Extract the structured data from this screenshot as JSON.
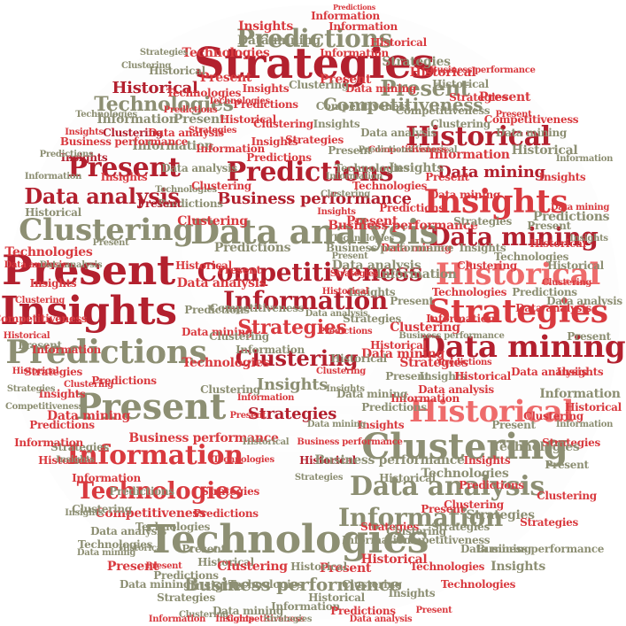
{
  "palette": {
    "dark_red": "#b3202e",
    "red": "#d93a3f",
    "salmon": "#ee6b6b",
    "olive": "#8d8f73",
    "background": "#ffffff"
  },
  "words": [
    {
      "t": "Strategies",
      "c": "dark_red"
    },
    {
      "t": "Predictions",
      "c": "olive"
    },
    {
      "t": "Technologies",
      "c": "olive"
    },
    {
      "t": "Present",
      "c": "dark_red"
    },
    {
      "t": "Data analysis",
      "c": "dark_red"
    },
    {
      "t": "Clustering",
      "c": "olive"
    },
    {
      "t": "Present",
      "c": "dark_red"
    },
    {
      "t": "Insights",
      "c": "dark_red"
    },
    {
      "t": "Predictions",
      "c": "olive"
    },
    {
      "t": "Present",
      "c": "olive"
    },
    {
      "t": "Information",
      "c": "red"
    },
    {
      "t": "Technologies",
      "c": "red"
    },
    {
      "t": "Technologies",
      "c": "olive"
    },
    {
      "t": "Business performance",
      "c": "olive"
    },
    {
      "t": "Historical",
      "c": "dark_red"
    },
    {
      "t": "Present",
      "c": "olive"
    },
    {
      "t": "Competitiveness",
      "c": "olive"
    },
    {
      "t": "Data mining",
      "c": "dark_red"
    },
    {
      "t": "Insights",
      "c": "red"
    },
    {
      "t": "Data mining",
      "c": "dark_red"
    },
    {
      "t": "Historical",
      "c": "salmon"
    },
    {
      "t": "Strategies",
      "c": "red"
    },
    {
      "t": "Data mining",
      "c": "dark_red"
    },
    {
      "t": "Historical",
      "c": "salmon"
    },
    {
      "t": "Clustering",
      "c": "olive"
    },
    {
      "t": "Data analysis",
      "c": "olive"
    },
    {
      "t": "Information",
      "c": "olive"
    },
    {
      "t": "Predictions",
      "c": "dark_red"
    },
    {
      "t": "Business performance",
      "c": "dark_red"
    },
    {
      "t": "Data analysis",
      "c": "olive"
    },
    {
      "t": "Competitiveness",
      "c": "dark_red"
    },
    {
      "t": "Information",
      "c": "dark_red"
    },
    {
      "t": "Strategies",
      "c": "red"
    },
    {
      "t": "Clustering",
      "c": "dark_red"
    },
    {
      "t": "Insights",
      "c": "olive"
    },
    {
      "t": "Strategies",
      "c": "dark_red"
    },
    {
      "t": "Competitiveness",
      "c": "olive"
    },
    {
      "t": "Historical",
      "c": "dark_red"
    },
    {
      "t": "Information",
      "c": "red"
    },
    {
      "t": "Information",
      "c": "red"
    },
    {
      "t": "Predictions",
      "c": "red"
    },
    {
      "t": "Insights",
      "c": "red"
    },
    {
      "t": "Data mining",
      "c": "olive"
    },
    {
      "t": "Historical",
      "c": "red"
    },
    {
      "t": "Technologies",
      "c": "red"
    },
    {
      "t": "Present",
      "c": "red"
    },
    {
      "t": "Historical",
      "c": "dark_red"
    },
    {
      "t": "Clustering",
      "c": "dark_red"
    },
    {
      "t": "Insights",
      "c": "dark_red"
    },
    {
      "t": "Information",
      "c": "olive"
    },
    {
      "t": "Predictions",
      "c": "olive"
    },
    {
      "t": "Data analysis",
      "c": "olive"
    },
    {
      "t": "Clustering",
      "c": "red"
    },
    {
      "t": "Present",
      "c": "dark_red"
    },
    {
      "t": "Technologies",
      "c": "olive"
    },
    {
      "t": "Data mining",
      "c": "red"
    },
    {
      "t": "Insights",
      "c": "red"
    },
    {
      "t": "Predictions",
      "c": "red"
    },
    {
      "t": "Strategies",
      "c": "olive"
    },
    {
      "t": "Historical",
      "c": "red"
    },
    {
      "t": "Information",
      "c": "red"
    },
    {
      "t": "Competitiveness",
      "c": "red"
    },
    {
      "t": "Business performance",
      "c": "red"
    },
    {
      "t": "Data analysis",
      "c": "olive"
    },
    {
      "t": "Technologies",
      "c": "olive"
    },
    {
      "t": "Present",
      "c": "olive"
    },
    {
      "t": "Strategies",
      "c": "red"
    },
    {
      "t": "Predictions",
      "c": "red"
    },
    {
      "t": "Historical",
      "c": "olive"
    },
    {
      "t": "Insights",
      "c": "olive"
    },
    {
      "t": "Clustering",
      "c": "red"
    },
    {
      "t": "Data mining",
      "c": "olive"
    },
    {
      "t": "Information",
      "c": "olive"
    },
    {
      "t": "Present",
      "c": "red"
    },
    {
      "t": "Historical",
      "c": "red"
    },
    {
      "t": "Clustering",
      "c": "olive"
    },
    {
      "t": "Technologies",
      "c": "red"
    },
    {
      "t": "Insights",
      "c": "olive"
    },
    {
      "t": "Competitiveness",
      "c": "olive"
    },
    {
      "t": "Strategies",
      "c": "olive"
    },
    {
      "t": "Data analysis",
      "c": "red"
    },
    {
      "t": "Data mining",
      "c": "red"
    },
    {
      "t": "Present",
      "c": "olive"
    },
    {
      "t": "Predictions",
      "c": "olive"
    },
    {
      "t": "Information",
      "c": "red"
    },
    {
      "t": "Historical",
      "c": "olive"
    },
    {
      "t": "Business performance",
      "c": "olive"
    },
    {
      "t": "Insights",
      "c": "red"
    },
    {
      "t": "Technologies",
      "c": "olive"
    },
    {
      "t": "Clustering",
      "c": "red"
    },
    {
      "t": "Strategies",
      "c": "olive"
    },
    {
      "t": "Present",
      "c": "red"
    },
    {
      "t": "Predictions",
      "c": "red"
    },
    {
      "t": "Historical",
      "c": "olive"
    },
    {
      "t": "Data analysis",
      "c": "red"
    },
    {
      "t": "Insights",
      "c": "red"
    },
    {
      "t": "Information",
      "c": "olive"
    },
    {
      "t": "Clustering",
      "c": "red"
    },
    {
      "t": "Strategies",
      "c": "red"
    },
    {
      "t": "Present",
      "c": "olive"
    },
    {
      "t": "Technologies",
      "c": "olive"
    },
    {
      "t": "Data mining",
      "c": "olive"
    },
    {
      "t": "Historical",
      "c": "olive"
    },
    {
      "t": "Insights",
      "c": "red"
    },
    {
      "t": "Predictions",
      "c": "olive"
    },
    {
      "t": "Competitiveness",
      "c": "red"
    },
    {
      "t": "Information",
      "c": "red"
    },
    {
      "t": "Present",
      "c": "red"
    },
    {
      "t": "Clustering",
      "c": "olive"
    },
    {
      "t": "Strategies",
      "c": "olive"
    },
    {
      "t": "Historical",
      "c": "red"
    },
    {
      "t": "Data analysis",
      "c": "olive"
    },
    {
      "t": "Insights",
      "c": "olive"
    },
    {
      "t": "Technologies",
      "c": "red"
    },
    {
      "t": "Predictions",
      "c": "red"
    },
    {
      "t": "Business performance",
      "c": "red"
    },
    {
      "t": "Data mining",
      "c": "red"
    },
    {
      "t": "Present",
      "c": "olive"
    },
    {
      "t": "Information",
      "c": "olive"
    },
    {
      "t": "Clustering",
      "c": "red"
    },
    {
      "t": "Historical",
      "c": "red"
    },
    {
      "t": "Strategies",
      "c": "red"
    },
    {
      "t": "Insights",
      "c": "olive"
    },
    {
      "t": "Predictions",
      "c": "olive"
    },
    {
      "t": "Technologies",
      "c": "red"
    },
    {
      "t": "Data analysis",
      "c": "red"
    },
    {
      "t": "Present",
      "c": "red"
    },
    {
      "t": "Competitiveness",
      "c": "olive"
    },
    {
      "t": "Information",
      "c": "olive"
    },
    {
      "t": "Clustering",
      "c": "olive"
    },
    {
      "t": "Historical",
      "c": "olive"
    },
    {
      "t": "Data mining",
      "c": "olive"
    },
    {
      "t": "Insights",
      "c": "red"
    },
    {
      "t": "Strategies",
      "c": "red"
    },
    {
      "t": "Predictions",
      "c": "red"
    },
    {
      "t": "Present",
      "c": "olive"
    },
    {
      "t": "Technologies",
      "c": "olive"
    },
    {
      "t": "Information",
      "c": "red"
    },
    {
      "t": "Clustering",
      "c": "red"
    },
    {
      "t": "Historical",
      "c": "red"
    },
    {
      "t": "Data analysis",
      "c": "olive"
    },
    {
      "t": "Insights",
      "c": "olive"
    },
    {
      "t": "Business performance",
      "c": "olive"
    },
    {
      "t": "Strategies",
      "c": "olive"
    },
    {
      "t": "Present",
      "c": "red"
    },
    {
      "t": "Predictions",
      "c": "olive"
    },
    {
      "t": "Data mining",
      "c": "red"
    },
    {
      "t": "Clustering",
      "c": "olive"
    },
    {
      "t": "Information",
      "c": "olive"
    },
    {
      "t": "Historical",
      "c": "olive"
    },
    {
      "t": "Technologies",
      "c": "red"
    },
    {
      "t": "Insights",
      "c": "red"
    },
    {
      "t": "Competitiveness",
      "c": "red"
    },
    {
      "t": "Present",
      "c": "olive"
    },
    {
      "t": "Strategies",
      "c": "red"
    },
    {
      "t": "Predictions",
      "c": "red"
    },
    {
      "t": "Data analysis",
      "c": "red"
    },
    {
      "t": "Clustering",
      "c": "red"
    },
    {
      "t": "Historical",
      "c": "red"
    },
    {
      "t": "Information",
      "c": "red"
    },
    {
      "t": "Insights",
      "c": "olive"
    },
    {
      "t": "Technologies",
      "c": "olive"
    },
    {
      "t": "Present",
      "c": "red"
    },
    {
      "t": "Data mining",
      "c": "olive"
    },
    {
      "t": "Strategies",
      "c": "olive"
    },
    {
      "t": "Predictions",
      "c": "olive"
    },
    {
      "t": "Historical",
      "c": "olive"
    },
    {
      "t": "Clustering",
      "c": "olive"
    },
    {
      "t": "Insights",
      "c": "red"
    },
    {
      "t": "Business performance",
      "c": "red"
    },
    {
      "t": "Information",
      "c": "olive"
    },
    {
      "t": "Present",
      "c": "olive"
    },
    {
      "t": "Data analysis",
      "c": "red"
    },
    {
      "t": "Technologies",
      "c": "red"
    },
    {
      "t": "Strategies",
      "c": "red"
    },
    {
      "t": "Historical",
      "c": "red"
    },
    {
      "t": "Predictions",
      "c": "red"
    },
    {
      "t": "Clustering",
      "c": "red"
    },
    {
      "t": "Insights",
      "c": "olive"
    },
    {
      "t": "Competitiveness",
      "c": "olive"
    },
    {
      "t": "Data mining",
      "c": "red"
    },
    {
      "t": "Present",
      "c": "red"
    },
    {
      "t": "Information",
      "c": "red"
    },
    {
      "t": "Historical",
      "c": "olive"
    },
    {
      "t": "Strategies",
      "c": "olive"
    },
    {
      "t": "Clustering",
      "c": "olive"
    },
    {
      "t": "Technologies",
      "c": "olive"
    },
    {
      "t": "Insights",
      "c": "red"
    },
    {
      "t": "Predictions",
      "c": "olive"
    },
    {
      "t": "Data analysis",
      "c": "olive"
    },
    {
      "t": "Present",
      "c": "olive"
    },
    {
      "t": "Historical",
      "c": "red"
    },
    {
      "t": "Information",
      "c": "olive"
    },
    {
      "t": "Clustering",
      "c": "red"
    },
    {
      "t": "Strategies",
      "c": "red"
    },
    {
      "t": "Business performance",
      "c": "olive"
    },
    {
      "t": "Insights",
      "c": "olive"
    },
    {
      "t": "Data mining",
      "c": "olive"
    },
    {
      "t": "Technologies",
      "c": "red"
    },
    {
      "t": "Present",
      "c": "red"
    },
    {
      "t": "Predictions",
      "c": "red"
    },
    {
      "t": "Historical",
      "c": "olive"
    },
    {
      "t": "Competitiveness",
      "c": "red"
    },
    {
      "t": "Clustering",
      "c": "olive"
    },
    {
      "t": "Information",
      "c": "red"
    },
    {
      "t": "Insights",
      "c": "red"
    },
    {
      "t": "Strategies",
      "c": "olive"
    },
    {
      "t": "Data analysis",
      "c": "red"
    },
    {
      "t": "Present",
      "c": "olive"
    },
    {
      "t": "Historical",
      "c": "red"
    },
    {
      "t": "Technologies",
      "c": "olive"
    },
    {
      "t": "Predictions",
      "c": "olive"
    },
    {
      "t": "Clustering",
      "c": "red"
    },
    {
      "t": "Data mining",
      "c": "red"
    },
    {
      "t": "Insights",
      "c": "olive"
    },
    {
      "t": "Information",
      "c": "olive"
    },
    {
      "t": "Present",
      "c": "red"
    },
    {
      "t": "Strategies",
      "c": "red"
    },
    {
      "t": "Historical",
      "c": "olive"
    },
    {
      "t": "Business performance",
      "c": "red"
    },
    {
      "t": "Clustering",
      "c": "olive"
    },
    {
      "t": "Insights",
      "c": "red"
    },
    {
      "t": "Technologies",
      "c": "red"
    },
    {
      "t": "Predictions",
      "c": "red"
    },
    {
      "t": "Present",
      "c": "olive"
    },
    {
      "t": "Data analysis",
      "c": "olive"
    },
    {
      "t": "Information",
      "c": "red"
    },
    {
      "t": "Historical",
      "c": "red"
    },
    {
      "t": "Strategies",
      "c": "olive"
    },
    {
      "t": "Competitiveness",
      "c": "olive"
    },
    {
      "t": "Clustering",
      "c": "red"
    },
    {
      "t": "Insights",
      "c": "olive"
    },
    {
      "t": "Data mining",
      "c": "olive"
    },
    {
      "t": "Present",
      "c": "red"
    },
    {
      "t": "Predictions",
      "c": "olive"
    },
    {
      "t": "Technologies",
      "c": "olive"
    },
    {
      "t": "Historical",
      "c": "olive"
    },
    {
      "t": "Information",
      "c": "olive"
    },
    {
      "t": "Strategies",
      "c": "red"
    },
    {
      "t": "Clustering",
      "c": "olive"
    },
    {
      "t": "Insights",
      "c": "red"
    },
    {
      "t": "Present",
      "c": "olive"
    },
    {
      "t": "Data analysis",
      "c": "red"
    },
    {
      "t": "Historical",
      "c": "red"
    },
    {
      "t": "Predictions",
      "c": "red"
    },
    {
      "t": "Business performance",
      "c": "olive"
    },
    {
      "t": "Information",
      "c": "red"
    },
    {
      "t": "Technologies",
      "c": "red"
    },
    {
      "t": "Clustering",
      "c": "red"
    },
    {
      "t": "Insights",
      "c": "olive"
    },
    {
      "t": "Strategies",
      "c": "olive"
    },
    {
      "t": "Data mining",
      "c": "red"
    },
    {
      "t": "Present",
      "c": "red"
    },
    {
      "t": "Historical",
      "c": "olive"
    },
    {
      "t": "Competitiveness",
      "c": "red"
    },
    {
      "t": "Predictions",
      "c": "olive"
    },
    {
      "t": "Information",
      "c": "olive"
    },
    {
      "t": "Clustering",
      "c": "olive"
    },
    {
      "t": "Insights",
      "c": "red"
    },
    {
      "t": "Technologies",
      "c": "olive"
    },
    {
      "t": "Present",
      "c": "olive"
    },
    {
      "t": "Strategies",
      "c": "red"
    },
    {
      "t": "Historical",
      "c": "red"
    },
    {
      "t": "Data analysis",
      "c": "olive"
    },
    {
      "t": "Predictions",
      "c": "red"
    },
    {
      "t": "Clustering",
      "c": "red"
    },
    {
      "t": "Insights",
      "c": "olive"
    },
    {
      "t": "Information",
      "c": "red"
    },
    {
      "t": "Present",
      "c": "red"
    },
    {
      "t": "Data mining",
      "c": "olive"
    },
    {
      "t": "Business performance",
      "c": "red"
    },
    {
      "t": "Historical",
      "c": "olive"
    },
    {
      "t": "Technologies",
      "c": "red"
    },
    {
      "t": "Strategies",
      "c": "olive"
    },
    {
      "t": "Clustering",
      "c": "olive"
    },
    {
      "t": "Insights",
      "c": "red"
    },
    {
      "t": "Predictions",
      "c": "olive"
    },
    {
      "t": "Present",
      "c": "olive"
    },
    {
      "t": "Information",
      "c": "olive"
    },
    {
      "t": "Historical",
      "c": "red"
    },
    {
      "t": "Competitiveness",
      "c": "olive"
    },
    {
      "t": "Data analysis",
      "c": "red"
    },
    {
      "t": "Clustering",
      "c": "red"
    },
    {
      "t": "Insights",
      "c": "olive"
    },
    {
      "t": "Strategies",
      "c": "red"
    },
    {
      "t": "Technologies",
      "c": "olive"
    },
    {
      "t": "Present",
      "c": "red"
    },
    {
      "t": "Data mining",
      "c": "red"
    },
    {
      "t": "Predictions",
      "c": "red"
    },
    {
      "t": "Historical",
      "c": "olive"
    },
    {
      "t": "Information",
      "c": "red"
    },
    {
      "t": "Clustering",
      "c": "olive"
    },
    {
      "t": "Insights",
      "c": "red"
    }
  ]
}
